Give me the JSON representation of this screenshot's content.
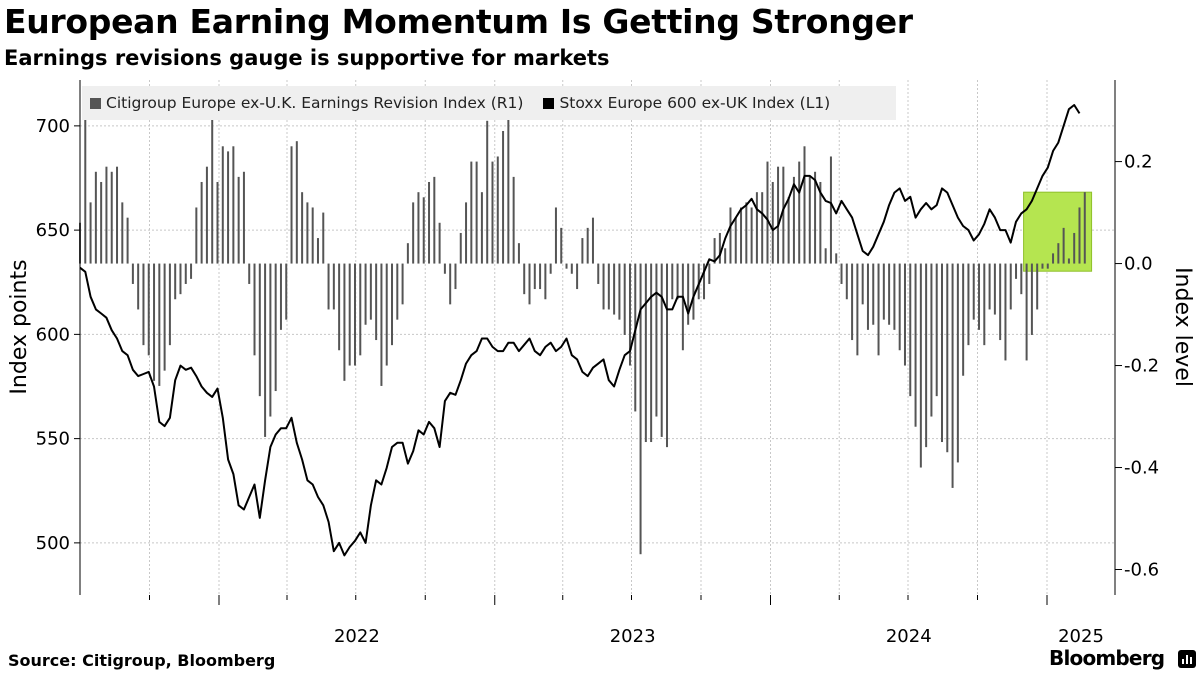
{
  "title": "European Earning Momentum Is Getting Stronger",
  "subtitle": "Earnings revisions gauge is supportive for markets",
  "source": "Source: Citigroup, Bloomberg",
  "brand": "Bloomberg",
  "brand_icon": "bloomberg-chart-icon",
  "chart_data": {
    "type": "bar+line",
    "xlabels": [
      "2022",
      "2023",
      "2024",
      "2025"
    ],
    "left_axis": {
      "label": "Index points",
      "ticks": [
        500,
        550,
        600,
        650,
        700
      ],
      "range": [
        475,
        722
      ]
    },
    "right_axis": {
      "label": "Index level",
      "ticks": [
        "0.2",
        "0.0",
        "-0.2",
        "-0.4",
        "-0.6"
      ],
      "range": [
        -0.65,
        0.36
      ]
    },
    "legend": [
      {
        "name": "Citigroup Europe ex-U.K. Earnings Revision Index (R1)",
        "color": "#555555"
      },
      {
        "name": "Stoxx Europe 600 ex-UK Index (L1)",
        "color": "#000000"
      }
    ],
    "grid": true,
    "highlight": {
      "from": "2024-12-01",
      "to": "2025-03-01",
      "color": "#b5e550"
    },
    "bars": {
      "name": "Citigroup Europe ex-U.K. Earnings Revision Index (R1)",
      "start": "2021-07-01",
      "interval": "week",
      "values": [
        0.08,
        0.29,
        0.12,
        0.18,
        0.16,
        0.19,
        0.18,
        0.19,
        0.12,
        0.09,
        -0.04,
        -0.09,
        -0.16,
        -0.18,
        -0.23,
        -0.24,
        -0.21,
        -0.16,
        -0.07,
        -0.06,
        -0.04,
        -0.03,
        0.11,
        0.16,
        0.19,
        0.29,
        0.16,
        0.23,
        0.22,
        0.23,
        0.17,
        0.18,
        -0.04,
        -0.18,
        -0.26,
        -0.34,
        -0.3,
        -0.25,
        -0.13,
        -0.11,
        0.23,
        0.24,
        0.14,
        0.12,
        0.11,
        0.05,
        0.1,
        -0.09,
        -0.09,
        -0.17,
        -0.23,
        -0.2,
        -0.2,
        -0.18,
        -0.12,
        -0.11,
        -0.15,
        -0.24,
        -0.2,
        -0.16,
        -0.11,
        -0.08,
        0.04,
        0.12,
        0.14,
        0.13,
        0.16,
        0.17,
        0.08,
        -0.02,
        -0.08,
        -0.05,
        0.06,
        0.12,
        0.2,
        0.2,
        0.14,
        0.28,
        0.2,
        0.21,
        0.26,
        0.29,
        0.17,
        0.04,
        -0.06,
        -0.08,
        -0.05,
        -0.05,
        -0.07,
        -0.02,
        0.11,
        0.07,
        -0.01,
        -0.02,
        -0.05,
        0.05,
        0.07,
        0.09,
        -0.04,
        -0.09,
        -0.09,
        -0.1,
        -0.11,
        -0.14,
        -0.2,
        -0.29,
        -0.57,
        -0.35,
        -0.35,
        -0.3,
        -0.34,
        -0.36,
        -0.07,
        -0.07,
        -0.17,
        -0.12,
        -0.11,
        -0.07,
        -0.07,
        -0.04,
        0.05,
        0.06,
        0.03,
        0.11,
        0.09,
        0.11,
        0.12,
        0.11,
        0.14,
        0.14,
        0.2,
        0.16,
        0.19,
        0.19,
        0.13,
        0.17,
        0.2,
        0.23,
        0.17,
        0.18,
        0.16,
        0.03,
        0.21,
        0.02,
        -0.04,
        -0.07,
        -0.15,
        -0.18,
        -0.08,
        -0.13,
        -0.12,
        -0.18,
        -0.11,
        -0.12,
        -0.13,
        -0.17,
        -0.2,
        -0.26,
        -0.32,
        -0.4,
        -0.36,
        -0.3,
        -0.26,
        -0.35,
        -0.37,
        -0.44,
        -0.39,
        -0.22,
        -0.16,
        -0.11,
        -0.13,
        -0.16,
        -0.09,
        -0.1,
        -0.15,
        -0.19,
        -0.09,
        -0.03,
        -0.06,
        -0.19,
        -0.14,
        -0.09,
        -0.01,
        -0.01,
        0.02,
        0.04,
        0.07,
        0.01,
        0.06,
        0.11,
        0.14
      ]
    },
    "line": {
      "name": "Stoxx Europe 600 ex-UK Index (L1)",
      "start": "2021-07-01",
      "interval": "week",
      "values": [
        632,
        630,
        618,
        612,
        610,
        608,
        602,
        598,
        592,
        590,
        583,
        580,
        581,
        582,
        575,
        558,
        556,
        560,
        578,
        585,
        583,
        584,
        580,
        575,
        572,
        570,
        574,
        560,
        540,
        533,
        518,
        516,
        522,
        528,
        512,
        530,
        546,
        552,
        555,
        555,
        560,
        548,
        540,
        530,
        528,
        522,
        518,
        510,
        496,
        500,
        494,
        498,
        501,
        505,
        500,
        518,
        530,
        528,
        536,
        546,
        548,
        548,
        538,
        544,
        554,
        552,
        558,
        555,
        546,
        568,
        572,
        571,
        578,
        586,
        590,
        592,
        598,
        598,
        594,
        592,
        592,
        596,
        596,
        592,
        595,
        598,
        592,
        590,
        594,
        596,
        592,
        594,
        598,
        590,
        588,
        582,
        580,
        584,
        586,
        588,
        578,
        575,
        583,
        590,
        592,
        602,
        612,
        615,
        618,
        620,
        618,
        612,
        612,
        618,
        618,
        610,
        618,
        624,
        630,
        636,
        635,
        638,
        646,
        652,
        656,
        660,
        662,
        665,
        660,
        658,
        655,
        650,
        652,
        660,
        665,
        672,
        668,
        676,
        676,
        674,
        668,
        664,
        663,
        658,
        664,
        660,
        656,
        648,
        640,
        638,
        642,
        648,
        654,
        662,
        668,
        670,
        664,
        666,
        656,
        660,
        663,
        660,
        662,
        670,
        668,
        662,
        656,
        652,
        650,
        645,
        648,
        653,
        660,
        656,
        650,
        650,
        644,
        654,
        658,
        660,
        664,
        670,
        676,
        680,
        688,
        692,
        700,
        708,
        710,
        706
      ]
    }
  }
}
